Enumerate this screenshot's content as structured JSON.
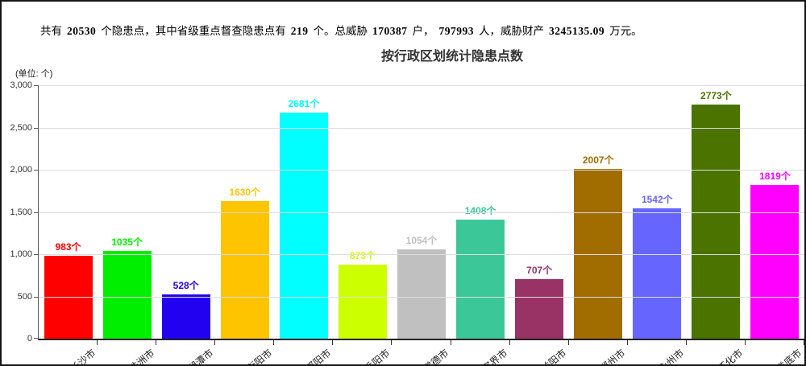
{
  "summary": {
    "s0": "共有",
    "n1": "20530",
    "s1": "个隐患点，其中省级重点督查隐患点有",
    "n2": "219",
    "s2": "个。总威胁",
    "n3": "170387",
    "s3": "户，",
    "n4": "797993",
    "s4": "人，威胁财产",
    "n5": "3245135.09",
    "s5": "万元。"
  },
  "chart_data": {
    "type": "bar",
    "title": "按行政区划统计隐患点数",
    "unit_label": "(单位: 个)",
    "categories": [
      "长沙市",
      "株洲市",
      "湘潭市",
      "衡阳市",
      "邵阳市",
      "岳阳市",
      "常德市",
      "张家界市",
      "益阳市",
      "郴州市",
      "永州市",
      "怀化市",
      "娄底市"
    ],
    "values": [
      983,
      1035,
      528,
      1630,
      2681,
      873,
      1054,
      1408,
      707,
      2007,
      1542,
      2773,
      1819
    ],
    "value_suffix": "个",
    "bar_colors": [
      "#FF0000",
      "#00EE00",
      "#2200F0",
      "#FFC400",
      "#00FFFF",
      "#CCFF00",
      "#C0C0C0",
      "#3CC799",
      "#993366",
      "#A16C00",
      "#6666FF",
      "#4A7300",
      "#FF00FF"
    ],
    "xlabel": "",
    "ylabel": "",
    "ylim": [
      0,
      3000
    ],
    "ytick_step": 500,
    "ytick_labels": [
      "0",
      "500",
      "1,000",
      "1,500",
      "2,000",
      "2,500",
      "3,000"
    ],
    "grid": true,
    "legend": "none"
  },
  "colors": {
    "grid_line": "#DDDDDD",
    "axis_line": "#222222",
    "title_text": "#333333"
  }
}
